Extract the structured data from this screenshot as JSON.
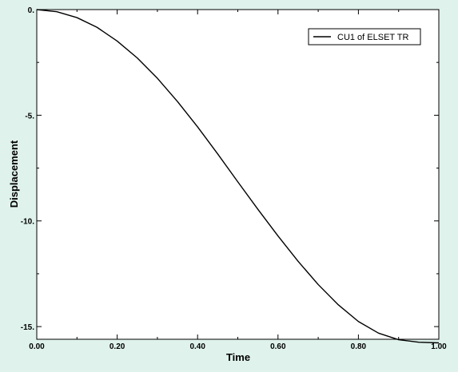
{
  "chart_data": {
    "type": "line",
    "title": "",
    "xlabel": "Time",
    "ylabel": "Displacement",
    "xlim": [
      0.0,
      1.0
    ],
    "ylim": [
      -15.6,
      0.0
    ],
    "x_ticks": [
      0.0,
      0.2,
      0.4,
      0.6,
      0.8,
      1.0
    ],
    "x_tick_labels": [
      "0.00",
      "0.20",
      "0.40",
      "0.60",
      "0.80",
      "1.00"
    ],
    "y_ticks": [
      0,
      -5,
      -10,
      -15
    ],
    "y_tick_labels": [
      "0.",
      "-5.",
      "-10.",
      "-15."
    ],
    "grid": false,
    "legend_position": "top-right",
    "colors": {
      "background": "#dff2ec",
      "plot_background": "#ffffff",
      "line": "#000000"
    },
    "series": [
      {
        "name": "CU1 of ELSET TR",
        "x": [
          0.0,
          0.05,
          0.1,
          0.15,
          0.2,
          0.25,
          0.3,
          0.35,
          0.4,
          0.45,
          0.5,
          0.55,
          0.6,
          0.65,
          0.7,
          0.75,
          0.8,
          0.85,
          0.9,
          0.95,
          1.0
        ],
        "y": [
          0.0,
          -0.1,
          -0.38,
          -0.84,
          -1.49,
          -2.29,
          -3.25,
          -4.35,
          -5.55,
          -6.83,
          -8.15,
          -9.45,
          -10.71,
          -11.91,
          -13.01,
          -13.97,
          -14.76,
          -15.31,
          -15.62,
          -15.74,
          -15.77
        ]
      }
    ]
  }
}
